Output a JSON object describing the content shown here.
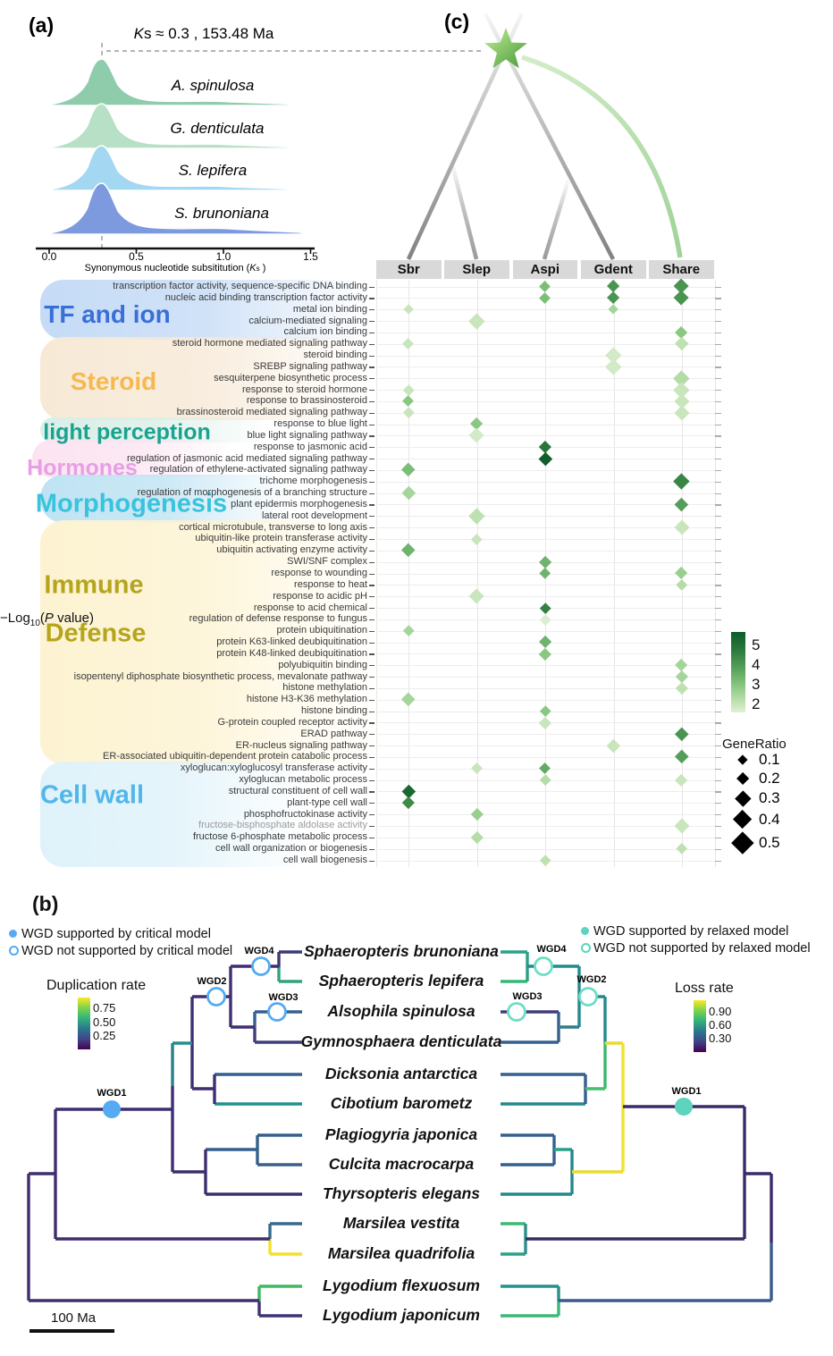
{
  "panel_a": {
    "label": "(a)",
    "title": {
      "k": "K",
      "s": "s",
      "rest": " ≈ 0.3 ,  153.48 Ma"
    },
    "ridges": [
      {
        "label": "A. spinulosa",
        "color": "#8fccab"
      },
      {
        "label": "G. denticulata",
        "color": "#b7e0c6"
      },
      {
        "label": "S. lepifera",
        "color": "#a4d7f2"
      },
      {
        "label": "S. brunoniana",
        "color": "#7e9ade"
      }
    ],
    "x_ticks": [
      "0.0",
      "0.5",
      "1.0",
      "1.5"
    ],
    "axis_label": {
      "prefix": "Synonymous nucleotide subsititution (",
      "k": "K",
      "s": "s",
      "suffix": " )"
    }
  },
  "panel_c": {
    "label": "(c)"
  },
  "chart_data": {
    "type": "heatmap",
    "note": "GO-term enrichment diamond matrix; mark = [column, GeneRatio, -log10(P value)]",
    "columns": [
      "Sbr",
      "Slep",
      "Aspi",
      "Gdent",
      "Share"
    ],
    "color_legend": {
      "prefix": "−Log",
      "sub": "10",
      "open": "(",
      "p": "P",
      "rest": " value)",
      "ticks": [
        "5",
        "4",
        "3",
        "2"
      ]
    },
    "size_legend": {
      "title": "GeneRatio",
      "values": [
        "0.1",
        "0.2",
        "0.3",
        "0.4",
        "0.5"
      ]
    },
    "categories": [
      {
        "label": "TF and ion",
        "color": "#3a6fd8",
        "bg": "#c5dbf6",
        "row_start": 1,
        "row_end": 5
      },
      {
        "label": "Steroid",
        "color": "#f5b950",
        "bg": "#f7e9d6",
        "row_start": 6,
        "row_end": 12
      },
      {
        "label": "light perception",
        "color": "#1ba390",
        "bg": "#d9efe7",
        "row_start": 13,
        "row_end": 14
      },
      {
        "label": "Hormones",
        "color": "#e79fe4",
        "bg": "#fce3f1",
        "row_start": 15,
        "row_end": 17
      },
      {
        "label": "Morphogenesis",
        "color": "#3ac3dc",
        "bg": "#bfe3f3",
        "row_start": 18,
        "row_end": 21
      },
      {
        "label": "Immune",
        "label2": "Defense",
        "color": "#b5a51c",
        "bg": "#fdf3d2",
        "row_start": 22,
        "row_end": 42
      },
      {
        "label": "Cell wall",
        "color": "#51b7ea",
        "bg": "#dff2fa",
        "row_start": 43,
        "row_end": 51
      }
    ],
    "rows": [
      {
        "term": "transcription factor activity, sequence-specific DNA binding",
        "marks": [
          [
            "Aspi",
            0.15,
            3.4
          ],
          [
            "Gdent",
            0.2,
            4.2
          ],
          [
            "Share",
            0.28,
            4.2
          ]
        ]
      },
      {
        "term": "nucleic acid binding transcription factor activity",
        "marks": [
          [
            "Aspi",
            0.15,
            3.4
          ],
          [
            "Gdent",
            0.2,
            4.2
          ],
          [
            "Share",
            0.28,
            4.2
          ]
        ]
      },
      {
        "term": "metal ion binding",
        "marks": [
          [
            "Sbr",
            0.12,
            2.2
          ],
          [
            "Gdent",
            0.12,
            2.8
          ]
        ]
      },
      {
        "term": "calcium-mediated signaling",
        "marks": [
          [
            "Slep",
            0.3,
            2.2
          ]
        ]
      },
      {
        "term": "calcium ion binding",
        "marks": [
          [
            "Share",
            0.2,
            3.2
          ]
        ]
      },
      {
        "term": "steroid hormone mediated signaling pathway",
        "marks": [
          [
            "Sbr",
            0.15,
            2.2
          ],
          [
            "Share",
            0.25,
            2.4
          ]
        ]
      },
      {
        "term": "steroid binding",
        "marks": [
          [
            "Gdent",
            0.3,
            2.0
          ]
        ]
      },
      {
        "term": "SREBP signaling pathway",
        "marks": [
          [
            "Gdent",
            0.3,
            2.0
          ]
        ]
      },
      {
        "term": "sesquiterpene biosynthetic process",
        "marks": [
          [
            "Share",
            0.3,
            2.6
          ]
        ]
      },
      {
        "term": "response to steroid hormone",
        "marks": [
          [
            "Sbr",
            0.13,
            2.2
          ],
          [
            "Share",
            0.3,
            2.2
          ]
        ]
      },
      {
        "term": "response to brassinosteroid",
        "marks": [
          [
            "Sbr",
            0.15,
            3.2
          ],
          [
            "Share",
            0.27,
            2.2
          ]
        ]
      },
      {
        "term": "brassinosteroid mediated signaling pathway",
        "marks": [
          [
            "Sbr",
            0.13,
            2.2
          ],
          [
            "Share",
            0.27,
            2.2
          ]
        ]
      },
      {
        "term": "response to blue light",
        "marks": [
          [
            "Slep",
            0.2,
            3.2
          ]
        ]
      },
      {
        "term": "blue light signaling pathway",
        "marks": [
          [
            "Slep",
            0.28,
            2.0
          ]
        ]
      },
      {
        "term": "response to jasmonic acid",
        "marks": [
          [
            "Aspi",
            0.18,
            4.8
          ]
        ]
      },
      {
        "term": "regulation of jasmonic acid mediated signaling pathway",
        "marks": [
          [
            "Aspi",
            0.22,
            5.5
          ]
        ]
      },
      {
        "term": "regulation of ethylene-activated signaling pathway",
        "marks": [
          [
            "Sbr",
            0.25,
            3.4
          ]
        ]
      },
      {
        "term": "trichome morphogenesis",
        "marks": [
          [
            "Share",
            0.3,
            4.5
          ]
        ]
      },
      {
        "term": "regulation of morphogenesis of a branching structure",
        "marks": [
          [
            "Sbr",
            0.22,
            2.8
          ]
        ]
      },
      {
        "term": "plant epidermis morphogenesis",
        "marks": [
          [
            "Share",
            0.22,
            4.0
          ]
        ]
      },
      {
        "term": "lateral root development",
        "marks": [
          [
            "Slep",
            0.3,
            2.4
          ]
        ]
      },
      {
        "term": "cortical microtubule, transverse to long axis",
        "marks": [
          [
            "Share",
            0.27,
            2.2
          ]
        ]
      },
      {
        "term": "ubiquitin-like protein transferase activity",
        "marks": [
          [
            "Slep",
            0.13,
            2.2
          ]
        ]
      },
      {
        "term": "ubiquitin activating enzyme activity",
        "marks": [
          [
            "Sbr",
            0.25,
            3.6
          ]
        ]
      },
      {
        "term": "SWI/SNF complex",
        "marks": [
          [
            "Aspi",
            0.2,
            3.6
          ]
        ]
      },
      {
        "term": "response to wounding",
        "marks": [
          [
            "Aspi",
            0.17,
            3.6
          ],
          [
            "Share",
            0.2,
            3.0
          ]
        ]
      },
      {
        "term": "response to heat",
        "marks": [
          [
            "Share",
            0.17,
            2.6
          ]
        ]
      },
      {
        "term": "response to acidic pH",
        "marks": [
          [
            "Slep",
            0.28,
            2.2
          ]
        ]
      },
      {
        "term": "response to acid chemical",
        "marks": [
          [
            "Aspi",
            0.13,
            4.6
          ]
        ]
      },
      {
        "term": "regulation of defense response to fungus",
        "marks": [
          [
            "Aspi",
            0.13,
            1.8
          ]
        ]
      },
      {
        "term": "protein ubiquitination",
        "marks": [
          [
            "Sbr",
            0.13,
            2.8
          ]
        ]
      },
      {
        "term": "protein K63-linked deubiquitination",
        "marks": [
          [
            "Aspi",
            0.2,
            3.6
          ]
        ]
      },
      {
        "term": "protein K48-linked deubiquitination",
        "marks": [
          [
            "Aspi",
            0.18,
            3.2
          ]
        ]
      },
      {
        "term": "polyubiquitin binding",
        "marks": [
          [
            "Share",
            0.2,
            2.8
          ]
        ]
      },
      {
        "term": "isopentenyl diphosphate biosynthetic process, mevalonate pathway",
        "marks": [
          [
            "Share",
            0.18,
            2.8
          ]
        ]
      },
      {
        "term": "histone methylation",
        "marks": [
          [
            "Share",
            0.18,
            2.4
          ]
        ]
      },
      {
        "term": "histone H3-K36 methylation",
        "marks": [
          [
            "Sbr",
            0.25,
            2.8
          ]
        ]
      },
      {
        "term": "histone binding",
        "marks": [
          [
            "Aspi",
            0.13,
            3.2
          ]
        ]
      },
      {
        "term": "G-protein coupled receptor activity",
        "marks": [
          [
            "Aspi",
            0.18,
            2.2
          ]
        ]
      },
      {
        "term": "ERAD pathway",
        "marks": [
          [
            "Share",
            0.25,
            4.2
          ]
        ]
      },
      {
        "term": "ER-nucleus signaling pathway",
        "marks": [
          [
            "Gdent",
            0.22,
            2.2
          ]
        ]
      },
      {
        "term": "ER-associated ubiquitin-dependent protein catabolic process",
        "marks": [
          [
            "Share",
            0.25,
            4.0
          ]
        ]
      },
      {
        "term": "xyloglucan:xyloglucosyl transferase activity",
        "marks": [
          [
            "Slep",
            0.15,
            2.2
          ],
          [
            "Aspi",
            0.15,
            3.8
          ]
        ]
      },
      {
        "term": "xyloglucan metabolic process",
        "marks": [
          [
            "Aspi",
            0.13,
            2.6
          ],
          [
            "Share",
            0.2,
            2.2
          ]
        ]
      },
      {
        "term": "structural constituent of cell wall",
        "marks": [
          [
            "Sbr",
            0.22,
            5.2
          ]
        ]
      },
      {
        "term": "plant-type cell wall",
        "marks": [
          [
            "Sbr",
            0.18,
            4.4
          ]
        ]
      },
      {
        "term": "phosphofructokinase activity",
        "marks": [
          [
            "Slep",
            0.18,
            3.0
          ]
        ]
      },
      {
        "term": "fructose-bisphosphate aldolase activity",
        "gray": true,
        "marks": [
          [
            "Share",
            0.27,
            2.2
          ]
        ]
      },
      {
        "term": "fructose 6-phosphate metabolic process",
        "marks": [
          [
            "Slep",
            0.18,
            2.6
          ]
        ]
      },
      {
        "term": "cell wall organization or biogenesis",
        "marks": [
          [
            "Share",
            0.17,
            2.4
          ]
        ]
      },
      {
        "term": "cell wall biogenesis",
        "marks": [
          [
            "Aspi",
            0.13,
            2.4
          ]
        ]
      }
    ]
  },
  "panel_b": {
    "label": "(b)",
    "legend_left": [
      "WGD supported by critical model",
      "WGD not supported by critical model"
    ],
    "legend_right": [
      "WGD supported by relaxed model",
      "WGD not supported by relaxed model"
    ],
    "critical_color": "#55aaf2",
    "relaxed_color": "#5ed3bd",
    "dup_legend": {
      "title": "Duplication rate",
      "ticks": [
        "0.75",
        "0.50",
        "0.25"
      ]
    },
    "loss_legend": {
      "title": "Loss rate",
      "ticks": [
        "0.90",
        "0.60",
        "0.30"
      ]
    },
    "wgd": [
      "WGD1",
      "WGD2",
      "WGD3",
      "WGD4"
    ],
    "species": [
      "Sphaeropteris brunoniana",
      "Sphaeropteris lepifera",
      "Alsophila spinulosa",
      "Gymnosphaera denticulata",
      "Dicksonia antarctica",
      "Cibotium barometz",
      "Plagiogyria japonica",
      "Culcita macrocarpa",
      "Thyrsopteris elegans",
      "Marsilea vestita",
      "Marsilea quadrifolia",
      "Lygodium flexuosum",
      "Lygodium japonicum"
    ],
    "scale_bar": "100 Ma"
  }
}
